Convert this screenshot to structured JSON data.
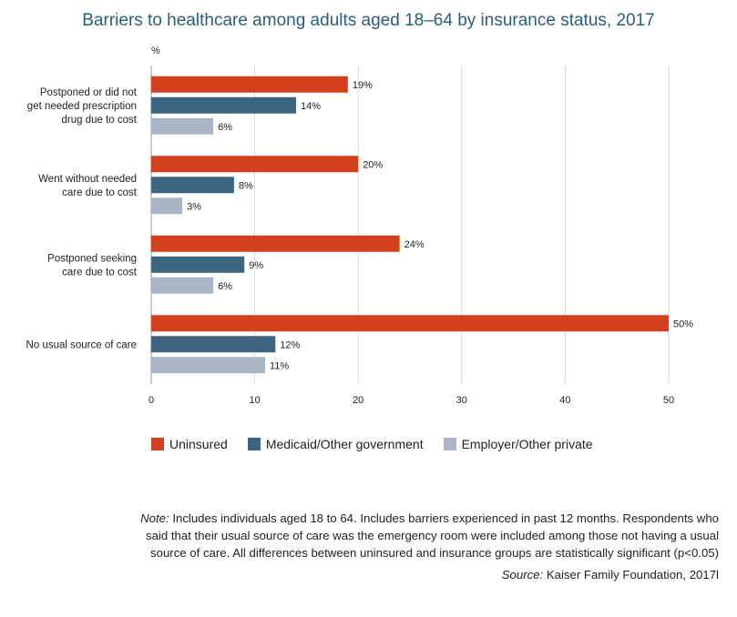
{
  "chart_data": {
    "type": "bar",
    "orientation": "horizontal",
    "title": "Barriers to healthcare among adults aged 18–64 by insurance status, 2017",
    "unit_label": "%",
    "categories": [
      [
        "Postponed or did not",
        "get needed prescription",
        "drug due to cost"
      ],
      [
        "Went without needed",
        "care due to cost"
      ],
      [
        "Postponed seeking",
        "care due to cost"
      ],
      [
        "No usual source of care"
      ]
    ],
    "series": [
      {
        "name": "Uninsured",
        "color": "#d2401e",
        "values": [
          19,
          20,
          24,
          50
        ]
      },
      {
        "name": "Medicaid/Other government",
        "color": "#3d6580",
        "values": [
          14,
          8,
          9,
          12
        ]
      },
      {
        "name": "Employer/Other private",
        "color": "#aab5c6",
        "values": [
          6,
          3,
          6,
          11
        ]
      }
    ],
    "value_suffix": "%",
    "xlim": [
      0,
      50
    ],
    "xticks": [
      0,
      10,
      20,
      30,
      40,
      50
    ],
    "grid": true,
    "legend_position": "bottom"
  },
  "note": {
    "label": "Note:",
    "text": " Includes individuals aged 18 to 64. Includes barriers experienced in past 12 months. Respondents who said that their usual source of care was the emergency room were included among those not having a usual source of care. All differences between uninsured and insurance groups are statistically significant (p<0.05)"
  },
  "source": {
    "label": "Source:",
    "text": " Kaiser Family Foundation, 2017l"
  }
}
